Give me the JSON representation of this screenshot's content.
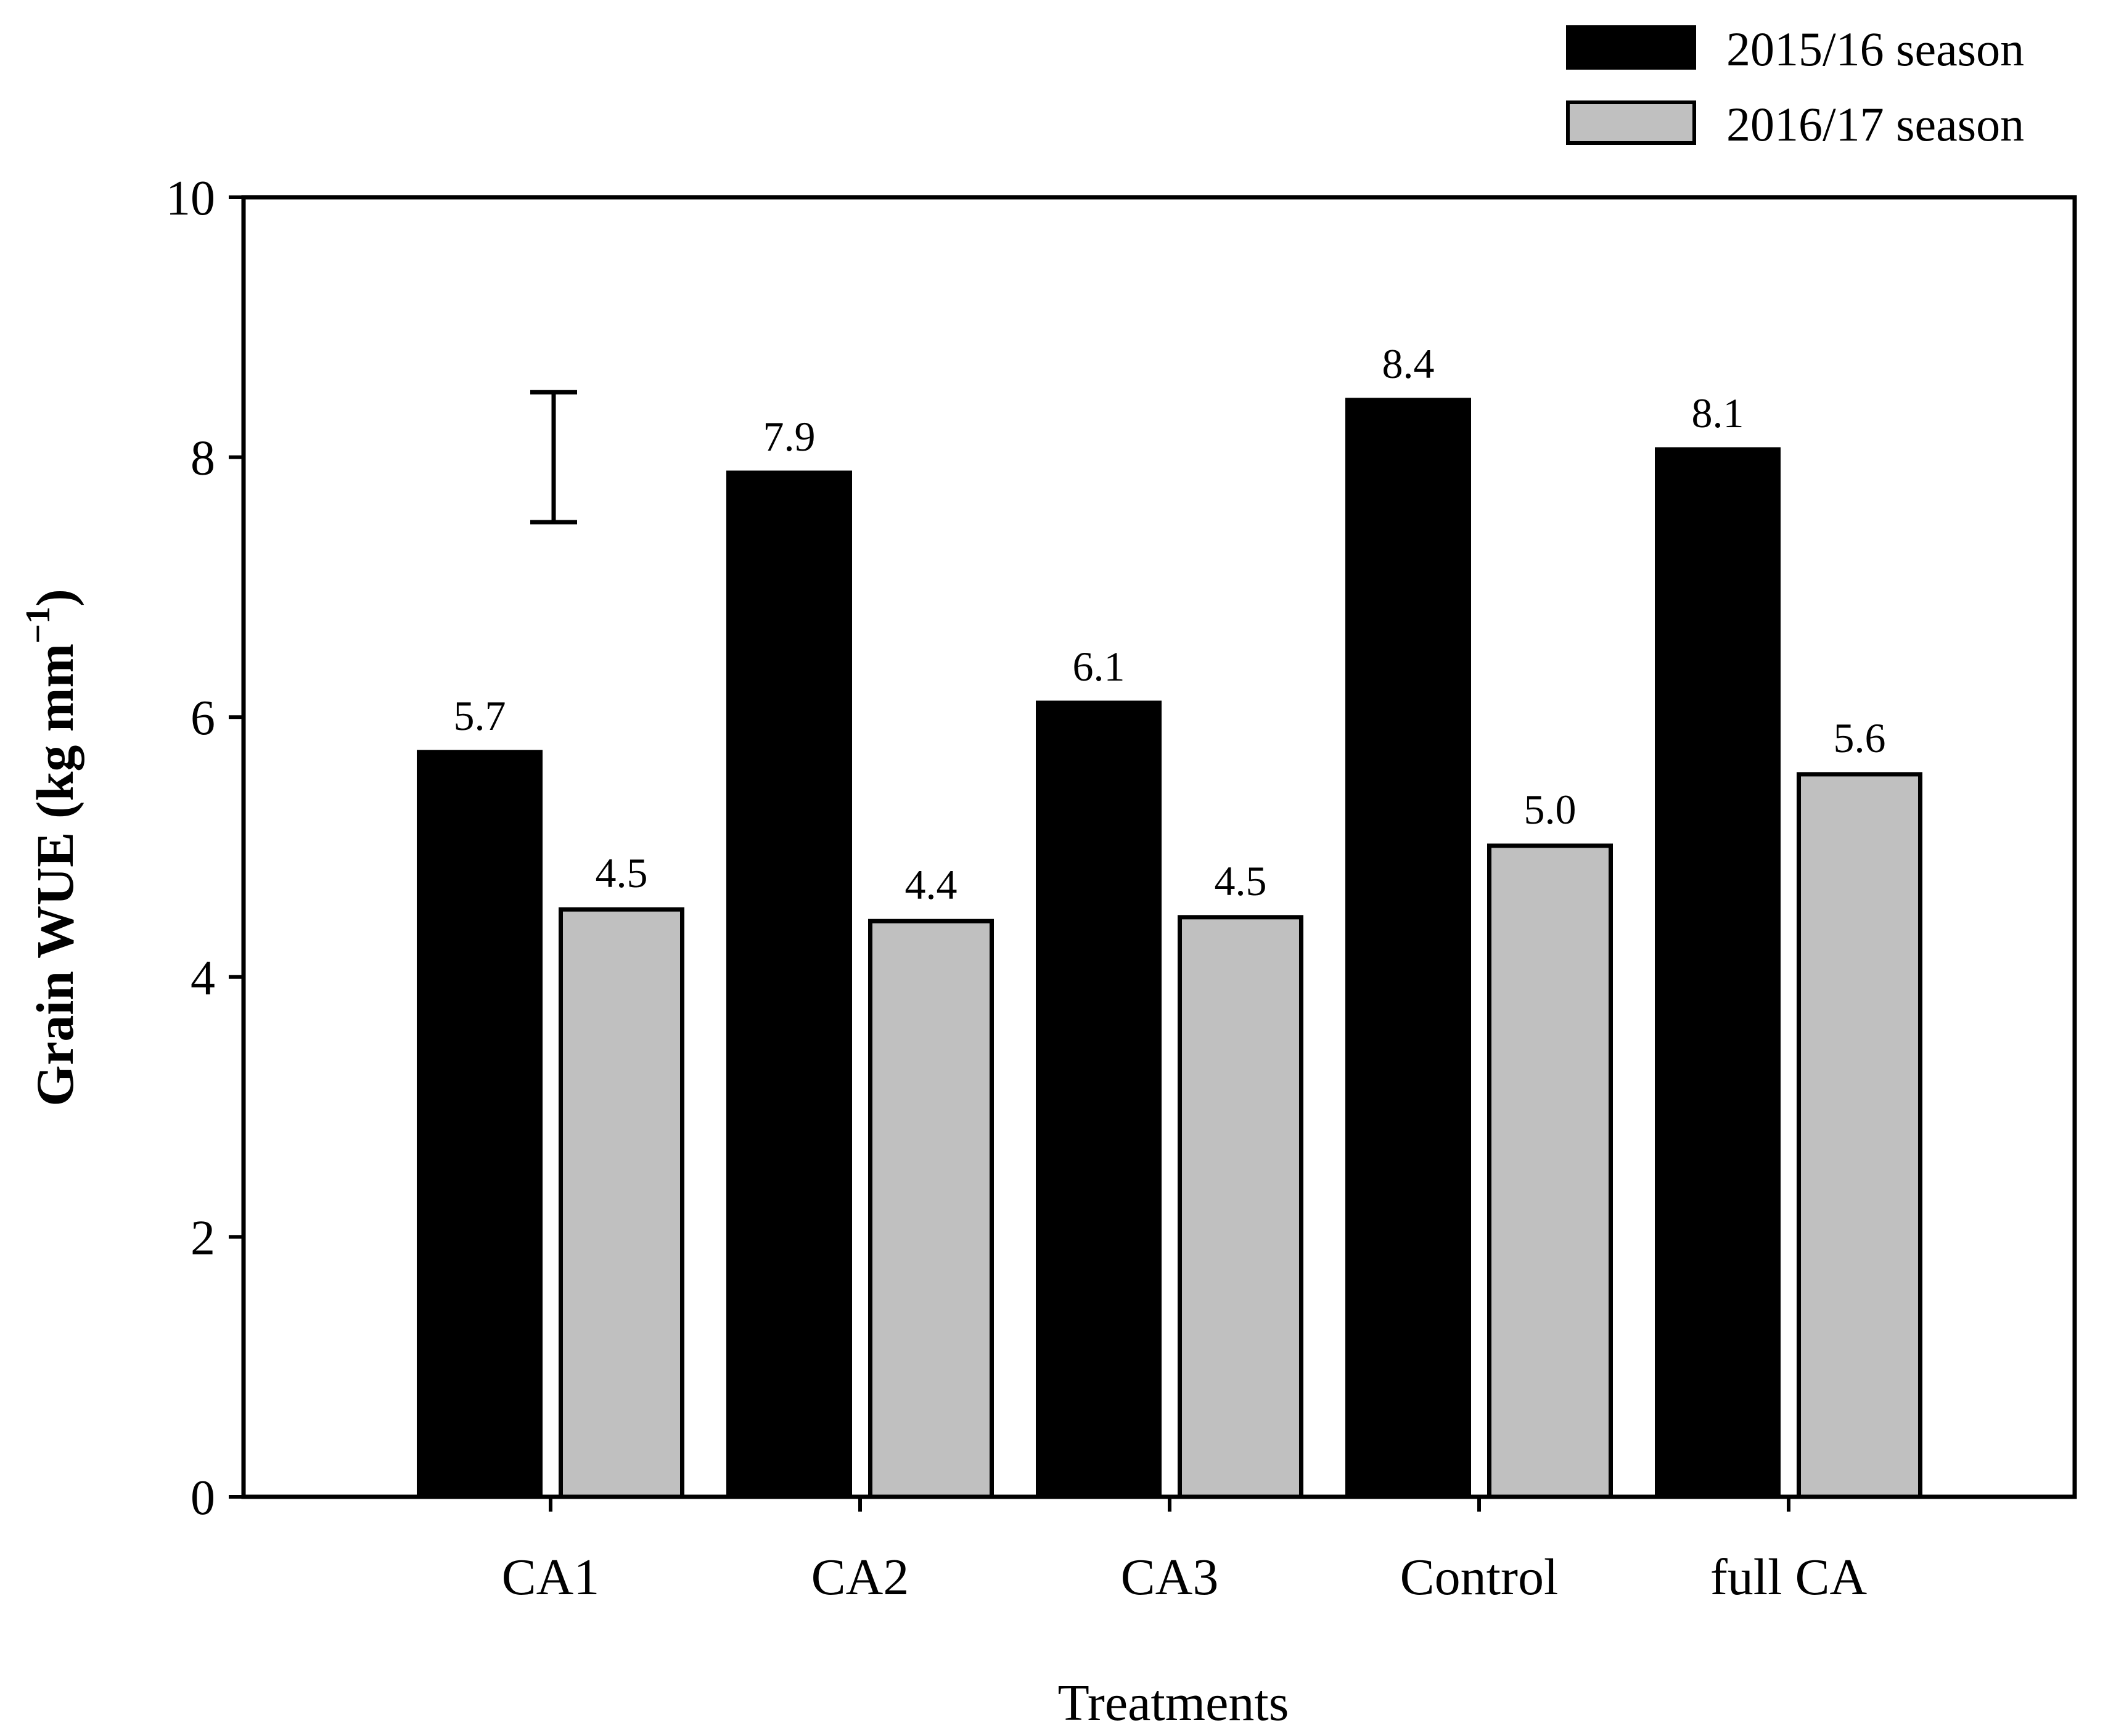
{
  "chart_data": {
    "type": "bar",
    "title": "",
    "xlabel": "Treatments",
    "ylabel": {
      "main": "Grain WUE (kg mm",
      "superscript": "−1",
      "close": ")"
    },
    "ylim": [
      0,
      10
    ],
    "yticks": [
      "0",
      "2",
      "4",
      "6",
      "8",
      "10"
    ],
    "categories": [
      "CA1",
      "CA2",
      "CA3",
      "Control",
      "full CA"
    ],
    "series": [
      {
        "name": "2015/16 season",
        "color": "#000000",
        "values": [
          5.73,
          7.88,
          6.11,
          8.44,
          8.06
        ],
        "labels": [
          "5.7",
          "7.9",
          "6.1",
          "8.4",
          "8.1"
        ]
      },
      {
        "name": "2016/17 season",
        "color": "#c0c0c0",
        "values": [
          4.52,
          4.43,
          4.46,
          5.01,
          5.56
        ],
        "labels": [
          "4.5",
          "4.4",
          "4.5",
          "5.0",
          "5.6"
        ]
      }
    ],
    "error_bar": {
      "low": 7.5,
      "high": 8.5
    },
    "legend_position": "top-right",
    "grid": false
  }
}
